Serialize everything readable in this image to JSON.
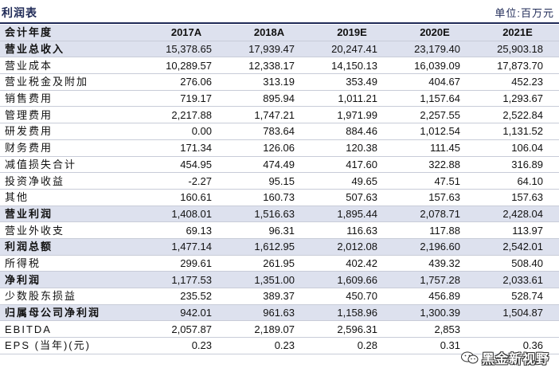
{
  "title": "利润表",
  "unit": "单位:百万元",
  "table": {
    "headers": [
      "会计年度",
      "2017A",
      "2018A",
      "2019E",
      "2020E",
      "2021E"
    ],
    "rows": [
      {
        "label": "营业总收入",
        "highlight": true,
        "values": [
          "15,378.65",
          "17,939.47",
          "20,247.41",
          "23,179.40",
          "25,903.18"
        ]
      },
      {
        "label": "营业成本",
        "highlight": false,
        "values": [
          "10,289.57",
          "12,338.17",
          "14,150.13",
          "16,039.09",
          "17,873.70"
        ]
      },
      {
        "label": "营业税金及附加",
        "highlight": false,
        "values": [
          "276.06",
          "313.19",
          "353.49",
          "404.67",
          "452.23"
        ]
      },
      {
        "label": "销售费用",
        "highlight": false,
        "values": [
          "719.17",
          "895.94",
          "1,011.21",
          "1,157.64",
          "1,293.67"
        ]
      },
      {
        "label": "管理费用",
        "highlight": false,
        "values": [
          "2,217.88",
          "1,747.21",
          "1,971.99",
          "2,257.55",
          "2,522.84"
        ]
      },
      {
        "label": "研发费用",
        "highlight": false,
        "values": [
          "0.00",
          "783.64",
          "884.46",
          "1,012.54",
          "1,131.52"
        ]
      },
      {
        "label": "财务费用",
        "highlight": false,
        "values": [
          "171.34",
          "126.06",
          "120.38",
          "111.45",
          "106.04"
        ]
      },
      {
        "label": "减值损失合计",
        "highlight": false,
        "values": [
          "454.95",
          "474.49",
          "417.60",
          "322.88",
          "316.89"
        ]
      },
      {
        "label": "投资净收益",
        "highlight": false,
        "values": [
          "-2.27",
          "95.15",
          "49.65",
          "47.51",
          "64.10"
        ]
      },
      {
        "label": "其他",
        "highlight": false,
        "values": [
          "160.61",
          "160.73",
          "507.63",
          "157.63",
          "157.63"
        ]
      },
      {
        "label": "营业利润",
        "highlight": true,
        "values": [
          "1,408.01",
          "1,516.63",
          "1,895.44",
          "2,078.71",
          "2,428.04"
        ]
      },
      {
        "label": "营业外收支",
        "highlight": false,
        "values": [
          "69.13",
          "96.31",
          "116.63",
          "117.88",
          "113.97"
        ]
      },
      {
        "label": "利润总额",
        "highlight": true,
        "values": [
          "1,477.14",
          "1,612.95",
          "2,012.08",
          "2,196.60",
          "2,542.01"
        ]
      },
      {
        "label": "所得税",
        "highlight": false,
        "values": [
          "299.61",
          "261.95",
          "402.42",
          "439.32",
          "508.40"
        ]
      },
      {
        "label": "净利润",
        "highlight": true,
        "values": [
          "1,177.53",
          "1,351.00",
          "1,609.66",
          "1,757.28",
          "2,033.61"
        ]
      },
      {
        "label": "少数股东损益",
        "highlight": false,
        "values": [
          "235.52",
          "389.37",
          "450.70",
          "456.89",
          "528.74"
        ]
      },
      {
        "label": "归属母公司净利润",
        "highlight": true,
        "values": [
          "942.01",
          "961.63",
          "1,158.96",
          "1,300.39",
          "1,504.87"
        ]
      },
      {
        "label": "EBITDA",
        "highlight": false,
        "values": [
          "2,057.87",
          "2,189.07",
          "2,596.31",
          "2,853",
          ""
        ]
      },
      {
        "label": "EPS (当年)(元)",
        "highlight": false,
        "values": [
          "0.23",
          "0.23",
          "0.28",
          "0.31",
          "0.36"
        ]
      }
    ]
  },
  "watermark": {
    "text": "黑金新视野",
    "icon": "wechat-icon"
  }
}
